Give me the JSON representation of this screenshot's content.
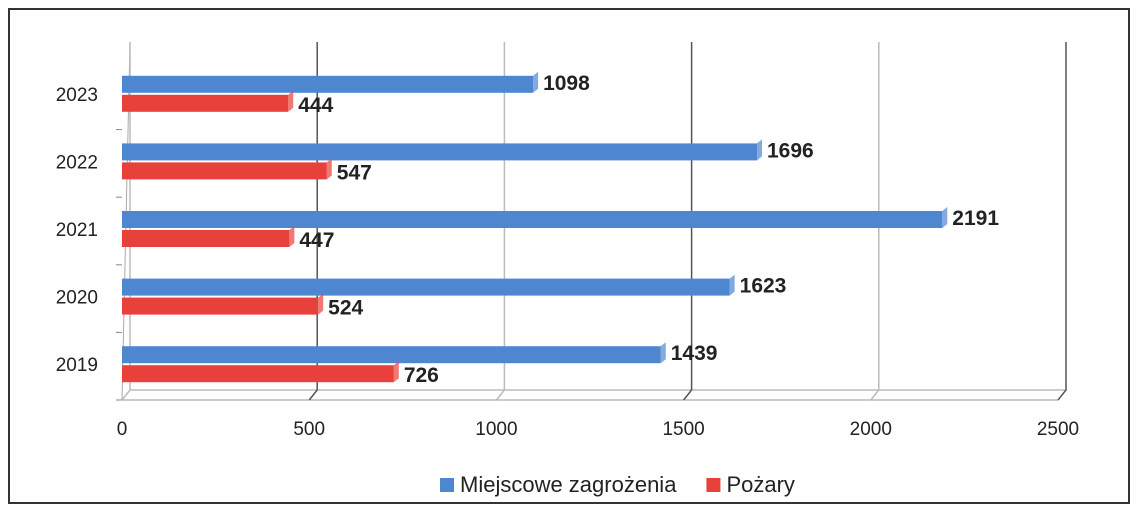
{
  "chart_data": {
    "type": "bar",
    "orientation": "horizontal",
    "categories": [
      "2019",
      "2020",
      "2021",
      "2022",
      "2023"
    ],
    "series": [
      {
        "name": "Miejscowe zagrożenia",
        "color": "#4f86d0",
        "values": [
          1439,
          1623,
          2191,
          1696,
          1098
        ]
      },
      {
        "name": "Pożary",
        "color": "#e8413b",
        "values": [
          726,
          524,
          447,
          547,
          444
        ]
      }
    ],
    "xlim": [
      0,
      2500
    ],
    "xticks": [
      0,
      500,
      1000,
      1500,
      2000,
      2500
    ],
    "grid": true,
    "legend": "bottom"
  }
}
